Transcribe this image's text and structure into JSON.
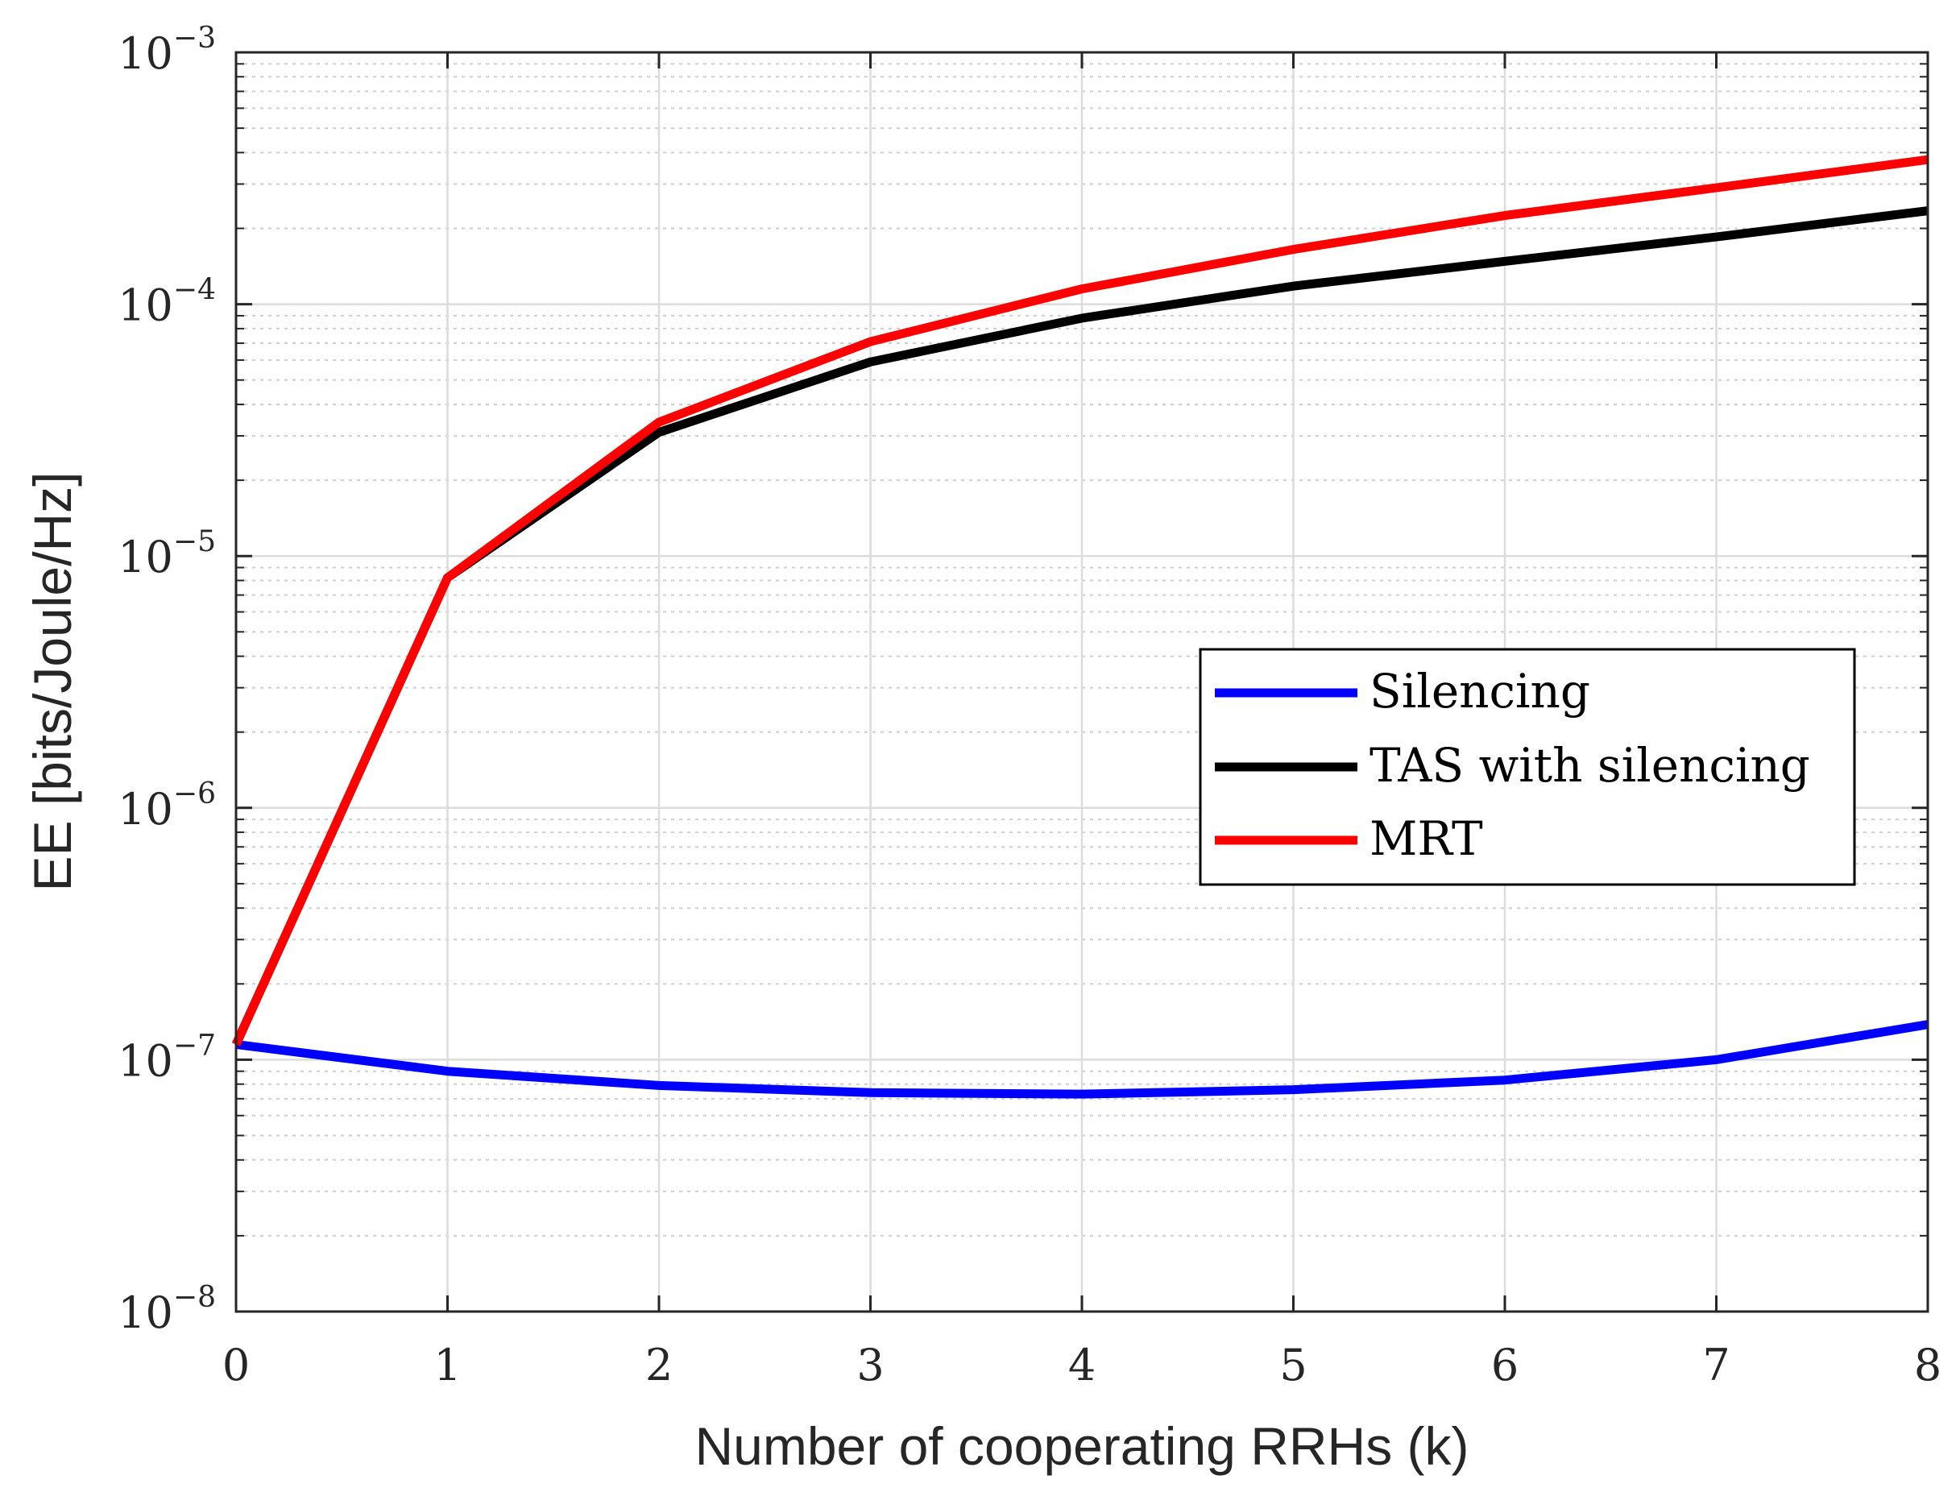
{
  "chart_data": {
    "type": "line",
    "title": "",
    "xlabel": "Number of cooperating RRHs (k)",
    "ylabel": "EE [bits/Joule/Hz]",
    "x": [
      0,
      1,
      2,
      3,
      4,
      5,
      6,
      7,
      8
    ],
    "xlim": [
      0,
      8
    ],
    "xticks": [
      "0",
      "1",
      "2",
      "3",
      "4",
      "5",
      "6",
      "7",
      "8"
    ],
    "yscale": "log",
    "ylim": [
      1e-08,
      0.001
    ],
    "yticks": [
      {
        "base": "10",
        "exp": "−8",
        "value": 1e-08
      },
      {
        "base": "10",
        "exp": "−7",
        "value": 1e-07
      },
      {
        "base": "10",
        "exp": "−6",
        "value": 1e-06
      },
      {
        "base": "10",
        "exp": "−5",
        "value": 1e-05
      },
      {
        "base": "10",
        "exp": "−4",
        "value": 0.0001
      },
      {
        "base": "10",
        "exp": "−3",
        "value": 0.001
      }
    ],
    "grid": true,
    "minor_grid": true,
    "legend_position": "center-right",
    "series": [
      {
        "name": "Silencing",
        "color": "#0000ff",
        "values": [
          1.15e-07,
          9e-08,
          7.9e-08,
          7.4e-08,
          7.3e-08,
          7.6e-08,
          8.3e-08,
          1e-07,
          1.38e-07
        ]
      },
      {
        "name": "TAS with silencing",
        "color": "#000000",
        "values": [
          1.15e-07,
          8.2e-06,
          3.1e-05,
          5.9e-05,
          8.8e-05,
          0.000118,
          0.000148,
          0.000185,
          0.000235
        ]
      },
      {
        "name": "MRT",
        "color": "#ff0000",
        "values": [
          1.15e-07,
          8.2e-06,
          3.4e-05,
          7.1e-05,
          0.000115,
          0.000165,
          0.000225,
          0.00029,
          0.000375
        ]
      }
    ]
  }
}
